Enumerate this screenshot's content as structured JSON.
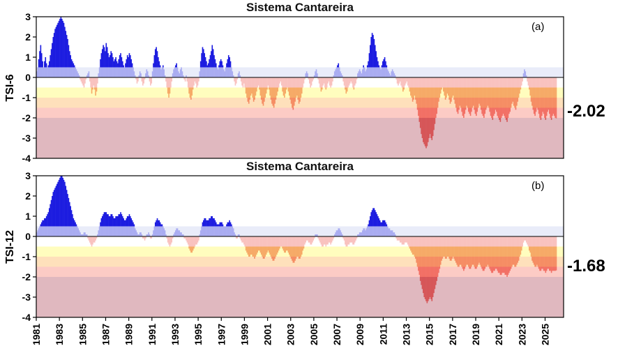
{
  "figure": {
    "background": "#ffffff",
    "axis_color": "#000000"
  },
  "chart_data": [
    {
      "type": "bar",
      "title": "Sistema Cantareira",
      "panel_label": "(a)",
      "ylabel": "TSI-6",
      "end_label": "-2.02",
      "ylim": [
        -4,
        3
      ],
      "yticks": [
        3,
        2,
        1,
        0,
        -1,
        -2,
        -3,
        -4
      ],
      "x_start_year": 1981,
      "x_end_year": 2026.6,
      "xtick_years": [
        1981,
        1983,
        1985,
        1987,
        1989,
        1991,
        1993,
        1995,
        1997,
        1999,
        2001,
        2003,
        2005,
        2007,
        2009,
        2011,
        2013,
        2015,
        2017,
        2019,
        2021,
        2023,
        2025
      ],
      "show_x_labels": false,
      "bar_colors": {
        "positive": "#1c1ce0",
        "negative": "#e8261c"
      },
      "bands": [
        {
          "from": 0.0,
          "to": 0.5,
          "color": "rgba(225,229,247,0.72)"
        },
        {
          "from": -0.5,
          "to": 0.0,
          "color": "rgba(255,255,255,0.72)"
        },
        {
          "from": -1.0,
          "to": -0.5,
          "color": "rgba(255,252,150,0.62)"
        },
        {
          "from": -1.5,
          "to": -1.0,
          "color": "rgba(253,205,145,0.62)"
        },
        {
          "from": -2.0,
          "to": -1.5,
          "color": "rgba(250,165,155,0.58)"
        },
        {
          "from": -4.0,
          "to": -2.0,
          "color": "rgba(198,125,138,0.55)"
        }
      ],
      "values": [
        0.3,
        0.5,
        0.9,
        1.3,
        1.6,
        1.2,
        0.8,
        0.5,
        0.8,
        1.0,
        0.7,
        0.5,
        0.6,
        0.8,
        1.1,
        1.4,
        1.7,
        2.0,
        2.2,
        2.4,
        2.5,
        2.6,
        2.7,
        2.8,
        2.9,
        3.0,
        2.9,
        2.8,
        2.7,
        2.5,
        2.3,
        2.1,
        1.9,
        1.6,
        1.3,
        1.1,
        0.9,
        0.8,
        0.7,
        0.6,
        0.5,
        0.4,
        0.3,
        0.2,
        0.1,
        -0.1,
        -0.2,
        -0.3,
        -0.4,
        -0.5,
        -0.3,
        -0.1,
        0.1,
        0.2,
        0.3,
        -0.2,
        -0.5,
        -0.8,
        -0.6,
        -0.4,
        -0.6,
        -0.9,
        -0.7,
        -0.3,
        0.2,
        0.5,
        0.9,
        1.2,
        1.4,
        1.6,
        1.5,
        1.3,
        1.7,
        1.5,
        1.2,
        1.0,
        1.1,
        1.3,
        1.2,
        1.0,
        0.8,
        0.9,
        1.0,
        0.8,
        0.7,
        0.9,
        1.1,
        1.2,
        1.0,
        0.8,
        0.6,
        0.5,
        0.7,
        0.9,
        1.1,
        1.0,
        1.2,
        1.1,
        0.9,
        0.7,
        0.5,
        0.3,
        0.1,
        -0.1,
        -0.3,
        -0.2,
        0.1,
        0.3,
        0.2,
        -0.2,
        -0.4,
        -0.3,
        -0.1,
        0.2,
        0.4,
        0.3,
        0.1,
        -0.2,
        -0.4,
        -0.3,
        0.3,
        0.7,
        1.1,
        1.4,
        1.5,
        1.3,
        1.0,
        0.8,
        0.6,
        0.4,
        0.5,
        0.6,
        0.4,
        0.1,
        -0.2,
        -0.5,
        -0.8,
        -1.0,
        -0.8,
        -0.5,
        -0.2,
        0.2,
        0.4,
        0.5,
        0.6,
        0.7,
        0.5,
        0.3,
        0.2,
        0.4,
        0.5,
        0.3,
        0.1,
        -0.1,
        -0.2,
        0.1,
        -0.2,
        -0.5,
        -0.8,
        -1.0,
        -1.1,
        -0.9,
        -0.6,
        -0.4,
        -0.2,
        -0.3,
        -0.5,
        -0.4,
        -0.2,
        0.3,
        0.8,
        1.2,
        1.5,
        1.4,
        1.2,
        1.0,
        0.8,
        0.6,
        0.7,
        0.9,
        1.1,
        1.3,
        1.6,
        1.4,
        1.1,
        0.9,
        0.7,
        0.5,
        0.4,
        0.6,
        0.8,
        0.9,
        0.8,
        0.6,
        0.4,
        0.3,
        0.5,
        0.7,
        0.9,
        1.1,
        1.0,
        0.8,
        0.5,
        0.3,
        0.1,
        -0.2,
        -0.4,
        -0.3,
        -0.1,
        0.2,
        0.3,
        0.1,
        -0.2,
        -0.4,
        -0.5,
        -0.3,
        -0.5,
        -0.8,
        -1.0,
        -1.2,
        -1.3,
        -1.1,
        -0.9,
        -0.8,
        -1.0,
        -1.2,
        -1.1,
        -0.9,
        -0.7,
        -0.5,
        -0.4,
        -0.6,
        -0.9,
        -1.1,
        -1.3,
        -1.4,
        -1.2,
        -1.0,
        -0.8,
        -0.6,
        -0.4,
        -0.6,
        -0.9,
        -1.1,
        -1.3,
        -1.4,
        -1.5,
        -1.3,
        -1.1,
        -0.9,
        -0.7,
        -0.5,
        -0.3,
        -0.2,
        -0.4,
        -0.7,
        -0.9,
        -1.0,
        -0.8,
        -0.6,
        -0.5,
        -0.7,
        -0.9,
        -1.1,
        -1.3,
        -1.5,
        -1.6,
        -1.4,
        -1.2,
        -1.0,
        -0.9,
        -1.1,
        -1.3,
        -1.2,
        -1.0,
        -0.8,
        -0.5,
        -0.3,
        -0.1,
        0.2,
        0.3,
        0.2,
        -0.1,
        -0.3,
        -0.5,
        -0.4,
        -0.2,
        -0.1,
        0.1,
        0.3,
        0.4,
        0.2,
        -0.1,
        -0.3,
        -0.5,
        -0.7,
        -0.6,
        -0.4,
        -0.3,
        -0.5,
        -0.6,
        -0.5,
        -0.3,
        -0.2,
        -0.4,
        -0.5,
        -0.4,
        -0.2,
        0.1,
        0.3,
        0.4,
        0.5,
        0.6,
        0.7,
        0.5,
        0.3,
        0.2,
        0.1,
        -0.2,
        -0.4,
        -0.6,
        -0.8,
        -0.7,
        -0.5,
        -0.4,
        -0.3,
        -0.2,
        -0.3,
        -0.5,
        -0.6,
        -0.4,
        -0.3,
        -0.1,
        0.2,
        0.3,
        0.4,
        0.3,
        0.2,
        0.4,
        0.6,
        0.5,
        0.3,
        0.4,
        0.6,
        0.8,
        1.2,
        1.6,
        2.0,
        2.2,
        2.1,
        1.9,
        1.6,
        1.3,
        1.0,
        0.8,
        0.6,
        0.5,
        0.4,
        0.6,
        0.8,
        0.9,
        1.0,
        0.8,
        0.6,
        0.4,
        0.3,
        0.2,
        0.1,
        0.3,
        0.4,
        0.3,
        0.2,
        0.1,
        -0.1,
        -0.3,
        -0.4,
        -0.3,
        -0.2,
        -0.4,
        -0.5,
        -0.7,
        -0.6,
        -0.4,
        -0.3,
        -0.2,
        -0.4,
        -0.5,
        -0.7,
        -0.9,
        -1.0,
        -1.2,
        -1.1,
        -0.9,
        -1.1,
        -1.3,
        -1.6,
        -1.9,
        -2.2,
        -2.5,
        -2.8,
        -3.0,
        -3.2,
        -3.3,
        -3.4,
        -3.5,
        -3.4,
        -3.2,
        -3.0,
        -2.8,
        -3.0,
        -3.1,
        -2.9,
        -2.6,
        -2.3,
        -2.0,
        -1.8,
        -1.5,
        -1.2,
        -1.0,
        -0.8,
        -0.6,
        -0.5,
        -0.7,
        -0.9,
        -1.1,
        -1.0,
        -0.8,
        -0.9,
        -1.1,
        -1.3,
        -1.2,
        -1.0,
        -0.9,
        -1.1,
        -1.3,
        -1.5,
        -1.7,
        -1.8,
        -1.6,
        -1.4,
        -1.5,
        -1.7,
        -1.9,
        -2.0,
        -1.8,
        -1.6,
        -1.4,
        -1.5,
        -1.7,
        -1.8,
        -1.9,
        -1.7,
        -1.5,
        -1.4,
        -1.6,
        -1.8,
        -1.9,
        -1.7,
        -1.5,
        -1.3,
        -1.4,
        -1.6,
        -1.8,
        -1.9,
        -2.0,
        -1.8,
        -1.6,
        -1.5,
        -1.4,
        -1.5,
        -1.7,
        -1.9,
        -2.0,
        -2.1,
        -1.9,
        -1.8,
        -1.6,
        -1.7,
        -1.9,
        -2.0,
        -2.1,
        -2.2,
        -2.0,
        -1.9,
        -1.8,
        -1.9,
        -2.0,
        -2.1,
        -2.2,
        -2.0,
        -1.8,
        -1.7,
        -1.5,
        -1.3,
        -1.2,
        -1.4,
        -1.5,
        -1.6,
        -1.4,
        -1.2,
        -1.0,
        -0.8,
        -0.6,
        -0.4,
        -0.2,
        0.2,
        0.4,
        0.3,
        0.1,
        -0.2,
        -0.4,
        -0.6,
        -0.9,
        -1.2,
        -1.4,
        -1.6,
        -1.8,
        -1.9,
        -1.7,
        -1.5,
        -1.6,
        -1.8,
        -2.0,
        -2.1,
        -1.9,
        -1.7,
        -1.8,
        -2.0,
        -2.1,
        -1.9,
        -1.7,
        -1.6,
        -1.8,
        -2.0,
        -2.1,
        -1.9,
        -1.8,
        -1.9,
        -2.0,
        -2.02
      ]
    },
    {
      "type": "bar",
      "title": "Sistema Cantareira",
      "panel_label": "(b)",
      "ylabel": "TSI-12",
      "end_label": "-1.68",
      "ylim": [
        -4,
        3
      ],
      "yticks": [
        3,
        2,
        1,
        0,
        -1,
        -2,
        -3,
        -4
      ],
      "x_start_year": 1981,
      "x_end_year": 2026.6,
      "xtick_years": [
        1981,
        1983,
        1985,
        1987,
        1989,
        1991,
        1993,
        1995,
        1997,
        1999,
        2001,
        2003,
        2005,
        2007,
        2009,
        2011,
        2013,
        2015,
        2017,
        2019,
        2021,
        2023,
        2025
      ],
      "show_x_labels": true,
      "bar_colors": {
        "positive": "#1c1ce0",
        "negative": "#e8261c"
      },
      "bands": [
        {
          "from": 0.0,
          "to": 0.5,
          "color": "rgba(225,229,247,0.72)"
        },
        {
          "from": -0.5,
          "to": 0.0,
          "color": "rgba(255,255,255,0.72)"
        },
        {
          "from": -1.0,
          "to": -0.5,
          "color": "rgba(255,252,150,0.62)"
        },
        {
          "from": -1.5,
          "to": -1.0,
          "color": "rgba(253,205,145,0.62)"
        },
        {
          "from": -2.0,
          "to": -1.5,
          "color": "rgba(250,165,155,0.58)"
        },
        {
          "from": -4.0,
          "to": -2.0,
          "color": "rgba(198,125,138,0.55)"
        }
      ],
      "values": [
        0.2,
        0.3,
        0.4,
        0.5,
        0.6,
        0.7,
        0.8,
        0.8,
        0.9,
        0.9,
        1.0,
        1.1,
        1.2,
        1.4,
        1.6,
        1.8,
        2.0,
        2.2,
        2.3,
        2.4,
        2.5,
        2.6,
        2.7,
        2.8,
        2.9,
        3.0,
        3.0,
        2.9,
        2.8,
        2.7,
        2.5,
        2.3,
        2.1,
        1.9,
        1.7,
        1.5,
        1.3,
        1.1,
        0.9,
        0.8,
        0.7,
        0.6,
        0.5,
        0.4,
        0.3,
        0.2,
        0.1,
        0.1,
        0.1,
        0.2,
        0.2,
        0.1,
        0.1,
        -0.1,
        -0.2,
        -0.3,
        -0.4,
        -0.5,
        -0.4,
        -0.3,
        -0.3,
        -0.2,
        -0.1,
        0.1,
        0.3,
        0.5,
        0.7,
        0.9,
        1.0,
        1.1,
        1.2,
        1.2,
        1.2,
        1.1,
        1.1,
        1.0,
        1.0,
        1.1,
        1.1,
        1.0,
        0.9,
        0.9,
        1.0,
        1.0,
        1.0,
        1.1,
        1.1,
        1.2,
        1.1,
        1.0,
        0.9,
        0.8,
        0.8,
        0.9,
        1.0,
        1.0,
        1.1,
        1.0,
        0.9,
        0.8,
        0.7,
        0.6,
        0.4,
        0.3,
        0.2,
        0.1,
        0.1,
        0.2,
        0.2,
        0.1,
        -0.1,
        -0.1,
        -0.2,
        -0.1,
        0.1,
        0.1,
        0.2,
        0.1,
        -0.1,
        -0.1,
        0.1,
        0.3,
        0.5,
        0.7,
        0.8,
        0.9,
        0.8,
        0.8,
        0.7,
        0.6,
        0.6,
        0.5,
        0.4,
        0.3,
        0.1,
        -0.1,
        -0.3,
        -0.4,
        -0.5,
        -0.4,
        -0.3,
        -0.1,
        0.1,
        0.2,
        0.3,
        0.4,
        0.4,
        0.3,
        0.3,
        0.2,
        0.2,
        0.1,
        0.1,
        -0.1,
        -0.1,
        -0.2,
        -0.3,
        -0.4,
        -0.6,
        -0.7,
        -0.8,
        -0.8,
        -0.7,
        -0.6,
        -0.5,
        -0.4,
        -0.4,
        -0.3,
        -0.2,
        0.1,
        0.3,
        0.5,
        0.7,
        0.8,
        0.9,
        0.9,
        0.8,
        0.8,
        0.8,
        0.9,
        0.9,
        1.0,
        1.0,
        0.9,
        0.9,
        0.8,
        0.7,
        0.6,
        0.6,
        0.6,
        0.7,
        0.7,
        0.7,
        0.6,
        0.5,
        0.5,
        0.5,
        0.6,
        0.7,
        0.7,
        0.8,
        0.7,
        0.6,
        0.5,
        0.4,
        0.2,
        0.1,
        -0.1,
        -0.1,
        0.1,
        0.1,
        -0.1,
        -0.2,
        -0.3,
        -0.3,
        -0.4,
        -0.5,
        -0.7,
        -0.8,
        -0.9,
        -1.0,
        -1.0,
        -0.9,
        -0.9,
        -1.0,
        -1.0,
        -1.1,
        -1.0,
        -0.9,
        -0.8,
        -0.7,
        -0.7,
        -0.8,
        -0.9,
        -1.0,
        -1.1,
        -1.1,
        -1.0,
        -0.9,
        -0.8,
        -0.7,
        -0.8,
        -0.9,
        -1.0,
        -1.1,
        -1.2,
        -1.2,
        -1.1,
        -1.0,
        -0.9,
        -0.8,
        -0.7,
        -0.6,
        -0.5,
        -0.5,
        -0.6,
        -0.7,
        -0.8,
        -0.8,
        -0.7,
        -0.7,
        -0.8,
        -0.9,
        -1.0,
        -1.1,
        -1.2,
        -1.3,
        -1.3,
        -1.2,
        -1.1,
        -1.0,
        -1.0,
        -1.1,
        -1.1,
        -1.0,
        -0.9,
        -0.7,
        -0.6,
        -0.4,
        -0.3,
        -0.2,
        -0.2,
        -0.3,
        -0.3,
        -0.4,
        -0.4,
        -0.3,
        -0.2,
        -0.1,
        0.1,
        0.1,
        0.1,
        -0.1,
        -0.2,
        -0.3,
        -0.4,
        -0.5,
        -0.5,
        -0.4,
        -0.4,
        -0.5,
        -0.4,
        -0.4,
        -0.3,
        -0.3,
        -0.4,
        -0.3,
        -0.2,
        -0.1,
        0.1,
        0.2,
        0.3,
        0.3,
        0.4,
        0.4,
        0.3,
        0.2,
        0.1,
        -0.1,
        -0.2,
        -0.4,
        -0.5,
        -0.5,
        -0.4,
        -0.4,
        -0.3,
        -0.3,
        -0.3,
        -0.4,
        -0.4,
        -0.3,
        -0.2,
        -0.1,
        0.1,
        0.1,
        0.2,
        0.2,
        0.2,
        0.3,
        0.4,
        0.4,
        0.3,
        0.4,
        0.5,
        0.6,
        0.8,
        1.0,
        1.2,
        1.3,
        1.4,
        1.4,
        1.3,
        1.2,
        1.1,
        1.0,
        0.9,
        0.8,
        0.7,
        0.7,
        0.8,
        0.8,
        0.8,
        0.7,
        0.6,
        0.5,
        0.4,
        0.4,
        0.3,
        0.3,
        0.3,
        0.2,
        0.2,
        0.1,
        -0.1,
        -0.2,
        -0.2,
        -0.2,
        -0.3,
        -0.3,
        -0.4,
        -0.4,
        -0.4,
        -0.3,
        -0.3,
        -0.3,
        -0.4,
        -0.5,
        -0.6,
        -0.7,
        -0.8,
        -0.9,
        -0.9,
        -1.0,
        -1.1,
        -1.3,
        -1.5,
        -1.7,
        -1.9,
        -2.2,
        -2.4,
        -2.6,
        -2.8,
        -3.0,
        -3.1,
        -3.2,
        -3.3,
        -3.2,
        -3.1,
        -3.0,
        -3.1,
        -3.2,
        -3.0,
        -2.8,
        -2.6,
        -2.4,
        -2.2,
        -2.0,
        -1.8,
        -1.6,
        -1.4,
        -1.2,
        -1.1,
        -1.0,
        -1.0,
        -1.1,
        -1.1,
        -1.0,
        -1.0,
        -1.1,
        -1.2,
        -1.2,
        -1.1,
        -1.0,
        -1.1,
        -1.2,
        -1.3,
        -1.4,
        -1.5,
        -1.5,
        -1.4,
        -1.4,
        -1.5,
        -1.6,
        -1.7,
        -1.6,
        -1.5,
        -1.4,
        -1.4,
        -1.5,
        -1.6,
        -1.6,
        -1.5,
        -1.4,
        -1.4,
        -1.5,
        -1.6,
        -1.6,
        -1.5,
        -1.4,
        -1.3,
        -1.4,
        -1.5,
        -1.6,
        -1.7,
        -1.7,
        -1.6,
        -1.5,
        -1.5,
        -1.4,
        -1.5,
        -1.6,
        -1.7,
        -1.8,
        -1.8,
        -1.7,
        -1.7,
        -1.6,
        -1.6,
        -1.7,
        -1.8,
        -1.8,
        -1.9,
        -1.9,
        -1.8,
        -1.8,
        -1.8,
        -1.9,
        -1.9,
        -2.0,
        -1.9,
        -1.8,
        -1.7,
        -1.6,
        -1.5,
        -1.4,
        -1.4,
        -1.5,
        -1.5,
        -1.4,
        -1.3,
        -1.2,
        -1.0,
        -0.9,
        -0.7,
        -0.5,
        -0.3,
        -0.2,
        -0.2,
        -0.3,
        -0.4,
        -0.5,
        -0.7,
        -0.8,
        -1.0,
        -1.2,
        -1.3,
        -1.4,
        -1.5,
        -1.5,
        -1.4,
        -1.5,
        -1.6,
        -1.7,
        -1.7,
        -1.6,
        -1.6,
        -1.7,
        -1.7,
        -1.8,
        -1.7,
        -1.6,
        -1.6,
        -1.7,
        -1.7,
        -1.8,
        -1.7,
        -1.7,
        -1.7,
        -1.7,
        -1.68
      ]
    }
  ]
}
